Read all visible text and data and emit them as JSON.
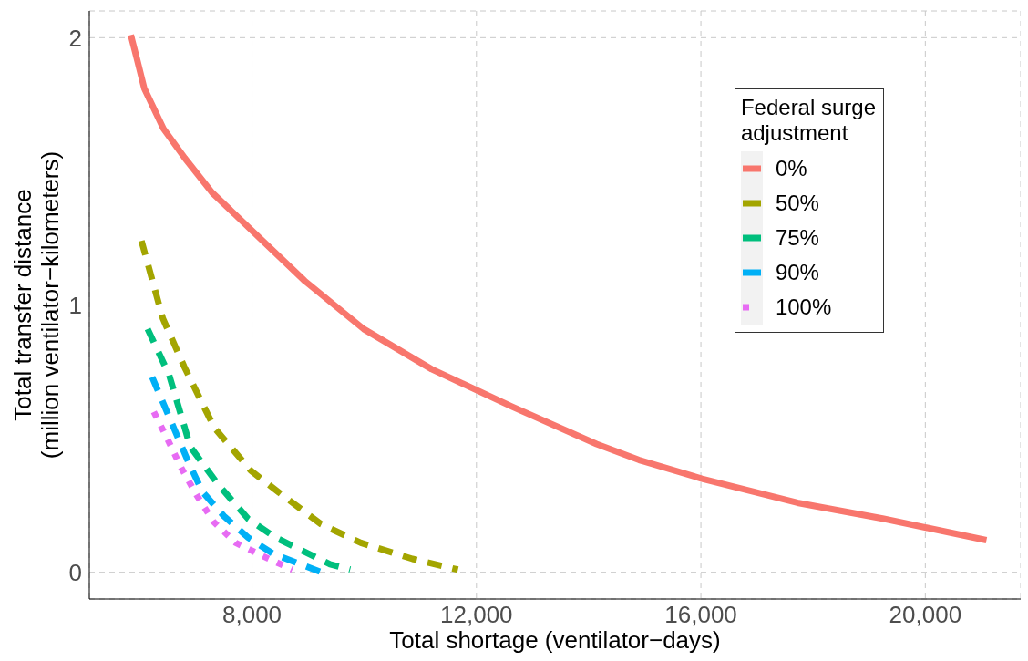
{
  "chart_data": {
    "type": "line",
    "xlabel": "Total shortage (ventilator−days)",
    "ylabel": "Total transfer distance\n(million ventilator−kilometers)",
    "legend_title": "Federal surge\nadjustment",
    "xlim": [
      5100,
      21700
    ],
    "xticks": [
      {
        "value": 8000,
        "label": "8,000"
      },
      {
        "value": 12000,
        "label": "12,000"
      },
      {
        "value": 16000,
        "label": "16,000"
      },
      {
        "value": 20000,
        "label": "20,000"
      }
    ],
    "ylim": [
      -0.1,
      2.1
    ],
    "yticks": [
      0,
      1,
      2
    ],
    "grid": true,
    "legend": "top right",
    "marker": "none",
    "series": [
      {
        "name": "0%",
        "color": "#f8766d",
        "line_style": "solid",
        "x": [
          5840,
          5950,
          6080,
          6420,
          6800,
          7290,
          8940,
          9990,
          11200,
          12630,
          14140,
          14900,
          16020,
          17720,
          19260,
          21090
        ],
        "values": [
          2.01,
          1.92,
          1.81,
          1.66,
          1.55,
          1.42,
          1.09,
          0.91,
          0.76,
          0.62,
          0.48,
          0.42,
          0.35,
          0.26,
          0.2,
          0.12
        ]
      },
      {
        "name": "50%",
        "color": "#a3a500",
        "line_style": "dashed",
        "x": [
          6030,
          6410,
          6790,
          7330,
          7980,
          8470,
          9230,
          9940,
          10860,
          11670
        ],
        "values": [
          1.24,
          0.95,
          0.77,
          0.54,
          0.38,
          0.3,
          0.18,
          0.11,
          0.05,
          0.01
        ]
      },
      {
        "name": "75%",
        "color": "#00bf7d",
        "line_style": "dashed",
        "x": [
          6140,
          6520,
          6900,
          7390,
          7930,
          8420,
          9390,
          9750
        ],
        "values": [
          0.91,
          0.74,
          0.47,
          0.33,
          0.2,
          0.13,
          0.03,
          0.01
        ]
      },
      {
        "name": "90%",
        "color": "#00b0f6",
        "line_style": "dashed",
        "x": [
          6220,
          6870,
          7120,
          7500,
          7930,
          8370,
          9240
        ],
        "values": [
          0.73,
          0.41,
          0.3,
          0.21,
          0.13,
          0.07,
          0.0
        ]
      },
      {
        "name": "100%",
        "color": "#e76bf3",
        "line_style": "dotted",
        "x": [
          6250,
          6490,
          6740,
          7010,
          7310,
          7710,
          8200,
          8720
        ],
        "values": [
          0.6,
          0.5,
          0.39,
          0.29,
          0.19,
          0.11,
          0.06,
          0.01
        ]
      }
    ]
  }
}
